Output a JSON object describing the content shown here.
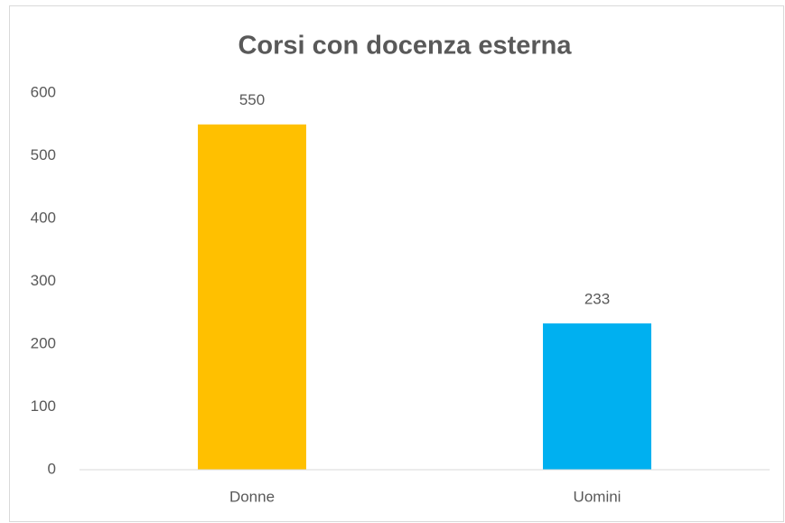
{
  "chart_data": {
    "type": "bar",
    "title": "Corsi con docenza esterna",
    "categories": [
      "Donne",
      "Uomini"
    ],
    "values": [
      550,
      233
    ],
    "colors": [
      "#ffc000",
      "#00b0f0"
    ],
    "ylim": [
      0,
      600
    ],
    "yticks": [
      0,
      100,
      200,
      300,
      400,
      500,
      600
    ],
    "grid": false,
    "data_labels": true
  }
}
